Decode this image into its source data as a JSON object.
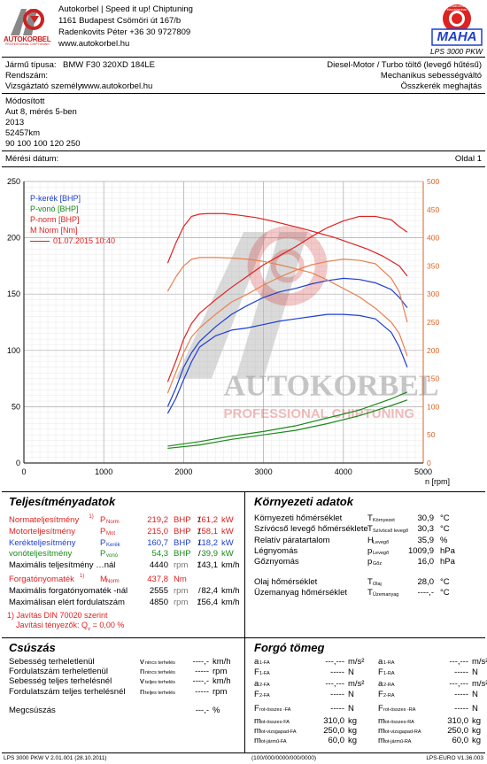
{
  "header": {
    "company": "Autokorbel | Speed it up! Chiptuning",
    "address": "1161 Budapest Csömöri út 167/b",
    "phone": "Radenkovits Péter +36 30 9727809",
    "website": "www.autokorbel.hu",
    "logo_text": "AUTOKORBEL",
    "logo_sub": "PROFESSIONAL CHIPTUNING",
    "maha_ring": "Messtechnik · Maschinenbau",
    "maha_text": "MAHA",
    "machine": "LPS 3000 PKW"
  },
  "vehicle": {
    "type_label": "Jármű típusa:",
    "type_value": "BMW F30 320XD 184LE",
    "engine": "Diesel-Motor / Turbo töltő (levegő hűtésű)",
    "plate_label": "Rendszám:",
    "speedo": "Mechanikus sebességváltó",
    "examiner_label": "Vizsgáztató személy:",
    "examiner_value": "www.autokorbel.hu",
    "drive": "Összkerék meghajtás",
    "notes": [
      "Módosított",
      "Aut 8, mérés 5-ben",
      "2013",
      "52457km",
      "90 100 100 120 250"
    ],
    "date_label": "Mérési dátum:",
    "page": "Oldal 1"
  },
  "chart_data": {
    "type": "line",
    "xlabel": "n [rpm]",
    "xlim": [
      0,
      5000
    ],
    "ylim_left": [
      0,
      250
    ],
    "ylim_right": [
      0,
      500
    ],
    "x_ticks": [
      0,
      1000,
      2000,
      3000,
      4000,
      5000
    ],
    "y_left_ticks": [
      0,
      50,
      100,
      150,
      200,
      250
    ],
    "y_right_ticks": [
      0,
      50,
      100,
      150,
      200,
      250,
      300,
      350,
      400,
      450,
      500
    ],
    "legend": [
      "P-kerék [BHP]",
      "P-vonó [BHP]",
      "P-norm [BHP]",
      "M Norm [Nm]"
    ],
    "legend_date": "01.07.2015 10:40",
    "watermark": "AUTOKORBEL",
    "watermark_sub": "PROFESSIONAL CHIPTUNING",
    "series": [
      {
        "name": "P-kerék [BHP]",
        "color": "#1f3fd0",
        "axis": "left",
        "x": [
          1800,
          1900,
          2000,
          2100,
          2200,
          2400,
          2600,
          2800,
          3000,
          3200,
          3400,
          3600,
          3800,
          4000,
          4200,
          4400,
          4600,
          4700,
          4800
        ],
        "y": [
          50,
          66,
          85,
          98,
          108,
          121,
          132,
          140,
          147,
          152,
          155,
          159,
          162,
          164,
          163,
          160,
          154,
          147,
          138
        ]
      },
      {
        "name": "P-kerék [BHP]",
        "color": "#1f3fd0",
        "axis": "left",
        "x": [
          1800,
          1900,
          2000,
          2100,
          2200,
          2400,
          2600,
          2800,
          3000,
          3200,
          3400,
          3600,
          3800,
          4000,
          4200,
          4400,
          4600,
          4700,
          4800
        ],
        "y": [
          44,
          57,
          74,
          90,
          103,
          113,
          118,
          120,
          123,
          126,
          128,
          130,
          132,
          132,
          131,
          128,
          116,
          103,
          85
        ]
      },
      {
        "name": "P-vonó [BHP]",
        "color": "#1a8a1a",
        "axis": "left",
        "x": [
          1800,
          2200,
          2600,
          3000,
          3400,
          3800,
          4200,
          4600,
          4800
        ],
        "y": [
          15,
          19,
          24,
          28,
          33,
          40,
          47,
          57,
          63
        ]
      },
      {
        "name": "P-vonó [BHP]",
        "color": "#1a8a1a",
        "axis": "left",
        "x": [
          1800,
          2200,
          2600,
          3000,
          3400,
          3800,
          4200,
          4600,
          4800
        ],
        "y": [
          13,
          16,
          21,
          25,
          29,
          35,
          42,
          51,
          56
        ]
      },
      {
        "name": "P-norm [BHP]",
        "color": "#e02020",
        "axis": "left",
        "x": [
          1800,
          1900,
          2000,
          2100,
          2200,
          2400,
          2600,
          2800,
          3000,
          3200,
          3400,
          3600,
          3800,
          4000,
          4200,
          4400,
          4600,
          4700,
          4800
        ],
        "y": [
          72,
          90,
          110,
          124,
          133,
          145,
          156,
          166,
          176,
          184,
          192,
          201,
          209,
          215,
          219,
          219,
          216,
          210,
          205
        ]
      },
      {
        "name": "P-norm [BHP]",
        "color": "#e88050",
        "axis": "left",
        "x": [
          1800,
          1900,
          2000,
          2100,
          2200,
          2400,
          2600,
          2800,
          3000,
          3200,
          3400,
          3600,
          3800,
          4000,
          4200,
          4400,
          4600,
          4700,
          4800
        ],
        "y": [
          62,
          80,
          98,
          112,
          120,
          132,
          143,
          150,
          158,
          165,
          171,
          176,
          179,
          181,
          180,
          177,
          164,
          152,
          125
        ]
      },
      {
        "name": "M Norm [Nm]",
        "color": "#e02020",
        "axis": "right",
        "x": [
          1800,
          1900,
          2000,
          2100,
          2200,
          2300,
          2500,
          2700,
          2900,
          3100,
          3300,
          3500,
          3700,
          3900,
          4100,
          4300,
          4500,
          4700,
          4800
        ],
        "y": [
          355,
          390,
          420,
          438,
          442,
          443,
          443,
          440,
          436,
          430,
          423,
          416,
          408,
          400,
          390,
          380,
          367,
          350,
          332
        ]
      },
      {
        "name": "M Norm [Nm]",
        "color": "#e88050",
        "axis": "right",
        "x": [
          1800,
          1900,
          2000,
          2100,
          2200,
          2400,
          2600,
          2800,
          3000,
          3200,
          3400,
          3600,
          3800,
          4000,
          4200,
          4400,
          4600,
          4700,
          4800
        ],
        "y": [
          305,
          330,
          350,
          362,
          365,
          365,
          364,
          362,
          358,
          352,
          345,
          338,
          325,
          310,
          295,
          275,
          250,
          230,
          190
        ]
      }
    ]
  },
  "performance": {
    "title": "Teljesítményadatok",
    "rows": [
      {
        "label": "Normateljesítmény",
        "sup": "1)",
        "sym": "P",
        "sub": "Norm",
        "v1": "219,2",
        "u1": "BHP",
        "v2": "161,2",
        "u2": "kW",
        "cls": "red"
      },
      {
        "label": "Motorteljesítmény",
        "sup": "",
        "sym": "P",
        "sub": "Mot",
        "v1": "215,0",
        "u1": "BHP",
        "v2": "158,1",
        "u2": "kW",
        "cls": "red"
      },
      {
        "label": "Kerékteljesítmény",
        "sup": "",
        "sym": "P",
        "sub": "Kerék",
        "v1": "160,7",
        "u1": "BHP",
        "v2": "118,2",
        "u2": "kW",
        "cls": "blue"
      },
      {
        "label": "vonóteljesítmény",
        "sup": "",
        "sym": "P",
        "sub": "vonó",
        "v1": "54,3",
        "u1": "BHP",
        "v2": "39,9",
        "u2": "kW",
        "cls": "green"
      },
      {
        "label": "Maximális teljesítmény …nál",
        "sup": "",
        "sym": "",
        "sub": "",
        "v1": "4440",
        "u1": "rpm",
        "v2": "143,1",
        "u2": "km/h",
        "cls": ""
      },
      {
        "label": "Forgatónyomaték",
        "sup": "1)",
        "sym": "M",
        "sub": "Norm",
        "v1": "437,8",
        "u1": "Nm",
        "v2": "",
        "u2": "",
        "cls": "red"
      },
      {
        "label": "Maximális forgatónyomaték -nál",
        "sup": "",
        "sym": "",
        "sub": "",
        "v1": "2555",
        "u1": "rpm",
        "v2": "82,4",
        "u2": "km/h",
        "cls": ""
      },
      {
        "label": "Maximálisan elért fordulatszám",
        "sup": "",
        "sym": "",
        "sub": "",
        "v1": "4850",
        "u1": "rpm",
        "v2": "156,4",
        "u2": "km/h",
        "cls": ""
      }
    ],
    "note1": "1) Javítás DIN 70020 szerint",
    "note2": "Javítási tényezők: Q",
    "note2_sub": "v",
    "note2_val": "= 0,00 %"
  },
  "environment": {
    "title": "Környezeti adatok",
    "rows": [
      {
        "label": "Környezeti hőmérséklet",
        "sym": "T",
        "sub": "Környezet",
        "val": "30,9",
        "unit": "°C"
      },
      {
        "label": "Szívócső levegő hőmérséklete",
        "sym": "T",
        "sub": "Szívócső levegő",
        "val": "30,3",
        "unit": "°C"
      },
      {
        "label": "Relatív páratartalom",
        "sym": "H",
        "sub": "Levegő",
        "val": "35,9",
        "unit": "%"
      },
      {
        "label": "Légnyomás",
        "sym": "p",
        "sub": "Levegő",
        "val": "1009,9",
        "unit": "hPa"
      },
      {
        "label": "Gőznyomás",
        "sym": "p",
        "sub": "Gőz",
        "val": "16,0",
        "unit": "hPa"
      },
      {
        "label": "Olaj hőmérséklet",
        "sym": "T",
        "sub": "Olaj",
        "val": "28,0",
        "unit": "°C"
      },
      {
        "label": "Üzemanyag hőmérséklet",
        "sym": "T",
        "sub": "Üzemanyag",
        "val": "----,-",
        "unit": "°C"
      }
    ]
  },
  "slip": {
    "title": "Csúszás",
    "rows": [
      {
        "label": "Sebesség terheletlenül",
        "sym": "v",
        "sub": "nincs terhelés",
        "val": "----,-",
        "unit": "km/h"
      },
      {
        "label": "Fordulatszám terheletlenül",
        "sym": "n",
        "sub": "nincs terhelés",
        "val": "-----",
        "unit": "rpm"
      },
      {
        "label": "Sebesség teljes terhelésnél",
        "sym": "v",
        "sub": "teljes terhelés",
        "val": "----,-",
        "unit": "km/h"
      },
      {
        "label": "Fordulatszám teljes terhelésnél",
        "sym": "n",
        "sub": "teljes terhelés",
        "val": "-----",
        "unit": "rpm"
      },
      {
        "label": "Megcsúszás",
        "sym": "",
        "sub": "",
        "val": "---,-",
        "unit": "%"
      }
    ]
  },
  "mass": {
    "title": "Forgó tömeg",
    "left": [
      {
        "sym": "a",
        "sub": "1-FA",
        "val": "---,---",
        "unit": "m/s²"
      },
      {
        "sym": "F",
        "sub": "1-FA",
        "val": "-----",
        "unit": "N"
      },
      {
        "sym": "a",
        "sub": "2-FA",
        "val": "---,---",
        "unit": "m/s²"
      },
      {
        "sym": "F",
        "sub": "2-FA",
        "val": "-----",
        "unit": "N"
      },
      {
        "sym": "F",
        "sub": "rot-összes -FA",
        "val": "-----",
        "unit": "N"
      },
      {
        "sym": "m",
        "sub": "rot-összes-FA",
        "val": "310,0",
        "unit": "kg"
      },
      {
        "sym": "m",
        "sub": "rot-vizsgapad-FA",
        "val": "250,0",
        "unit": "kg"
      },
      {
        "sym": "m",
        "sub": "rot-jármű-FA",
        "val": "60,0",
        "unit": "kg"
      }
    ],
    "right": [
      {
        "sym": "a",
        "sub": "1-RA",
        "val": "---,---",
        "unit": "m/s²"
      },
      {
        "sym": "F",
        "sub": "1-RA",
        "val": "-----",
        "unit": "N"
      },
      {
        "sym": "a",
        "sub": "2-RA",
        "val": "---,---",
        "unit": "m/s²"
      },
      {
        "sym": "F",
        "sub": "2-RA",
        "val": "-----",
        "unit": "N"
      },
      {
        "sym": "F",
        "sub": "rot-összes -RA",
        "val": "-----",
        "unit": "N"
      },
      {
        "sym": "m",
        "sub": "rot-összes-RA",
        "val": "310,0",
        "unit": "kg"
      },
      {
        "sym": "m",
        "sub": "rot-vizsgapad-RA",
        "val": "250,0",
        "unit": "kg"
      },
      {
        "sym": "m",
        "sub": "rot-jármű-RA",
        "val": "60,0",
        "unit": "kg"
      }
    ]
  },
  "footer": {
    "left": "LPS 3000 PKW V 2.01.001 (28.10.2011)",
    "center": "(100/000/0000/000/0000)",
    "right": "LPS-EURO V1.36.003"
  }
}
